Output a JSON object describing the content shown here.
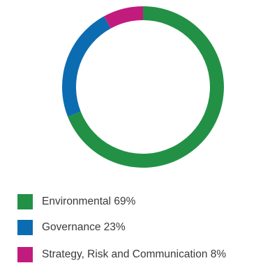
{
  "chart_data": {
    "type": "pie",
    "style": "donut",
    "slices": [
      {
        "label": "Environmental",
        "value": 69,
        "display": "Environmental 69%",
        "color": "#229146"
      },
      {
        "label": "Governance",
        "value": 23,
        "display": "Governance 23%",
        "color": "#0c6cb1"
      },
      {
        "label": "Strategy, Risk and Communication",
        "value": 8,
        "display": "Strategy, Risk and Communication 8%",
        "color": "#c21b7e"
      }
    ],
    "legend_position": "bottom-left",
    "start": "top",
    "direction": "clockwise"
  }
}
